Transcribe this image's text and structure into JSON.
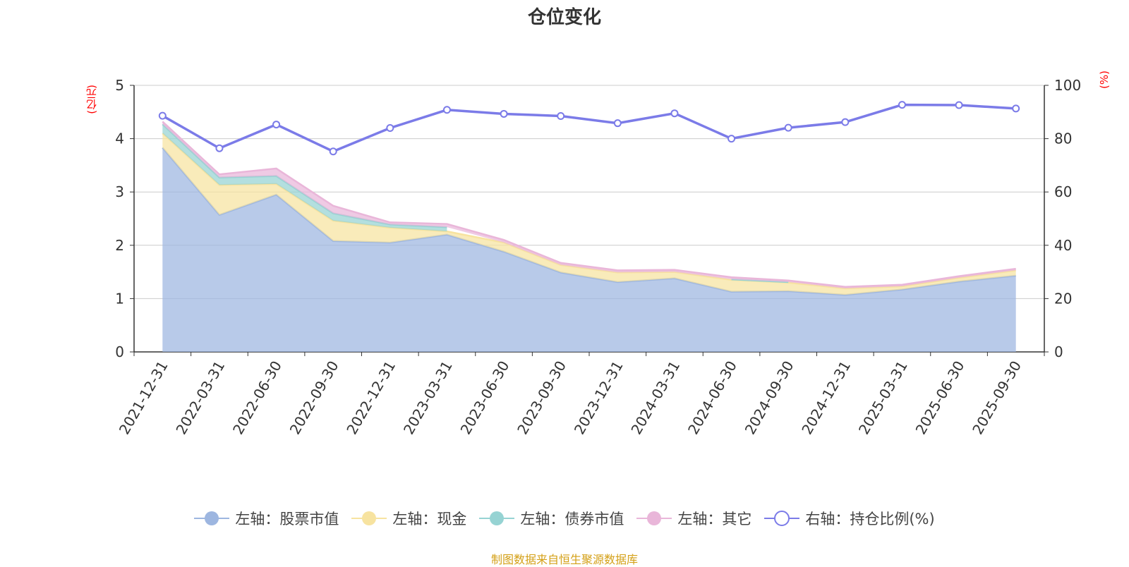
{
  "title": "仓位变化",
  "source": "制图数据来自恒生聚源数据库",
  "units": {
    "left": "(亿元)",
    "right": "(%)"
  },
  "chart_data": {
    "type": "area",
    "title": "仓位变化",
    "categories": [
      "2021-12-31",
      "2022-03-31",
      "2022-06-30",
      "2022-09-30",
      "2022-12-31",
      "2023-03-31",
      "2023-06-30",
      "2023-09-30",
      "2023-12-31",
      "2024-03-31",
      "2024-06-30",
      "2024-09-30",
      "2024-12-31",
      "2025-03-31",
      "2025-06-30",
      "2025-09-30"
    ],
    "y_left": {
      "min": 0,
      "max": 5,
      "ticks": [
        0,
        1,
        2,
        3,
        4,
        5
      ],
      "label": "(亿元)"
    },
    "y_right": {
      "min": 0,
      "max": 100,
      "ticks": [
        0,
        20,
        40,
        60,
        80,
        100
      ],
      "label": "(%)"
    },
    "series": [
      {
        "name": "左轴：股票市值",
        "axis": "left",
        "stack": true,
        "color": "#9db6e0",
        "values": [
          3.83,
          2.57,
          2.95,
          2.08,
          2.05,
          2.2,
          1.88,
          1.49,
          1.31,
          1.38,
          1.13,
          1.14,
          1.07,
          1.17,
          1.32,
          1.43
        ]
      },
      {
        "name": "左轴：现金",
        "axis": "left",
        "stack": true,
        "color": "#f7e3a0",
        "values": [
          0.27,
          0.56,
          0.2,
          0.38,
          0.28,
          0.06,
          0.17,
          0.14,
          0.18,
          0.12,
          0.22,
          0.16,
          0.12,
          0.06,
          0.07,
          0.1
        ]
      },
      {
        "name": "左轴：债券市值",
        "axis": "left",
        "stack": true,
        "color": "#96d3d3",
        "values": [
          0.17,
          0.14,
          0.15,
          0.14,
          0.06,
          0.08,
          null,
          null,
          null,
          null,
          0.01,
          0.01,
          null,
          null,
          null,
          null
        ]
      },
      {
        "name": "左轴：其它",
        "axis": "left",
        "stack": true,
        "color": "#e9b6d9",
        "values": [
          0.05,
          0.06,
          0.14,
          0.14,
          0.04,
          0.06,
          0.05,
          0.04,
          0.04,
          0.04,
          0.04,
          0.03,
          0.03,
          0.03,
          0.03,
          0.03
        ]
      },
      {
        "name": "右轴：持仓比例(%)",
        "axis": "right",
        "type": "line",
        "color": "#7b7be8",
        "values": [
          88.6,
          76.4,
          85.3,
          75.2,
          84.0,
          90.8,
          89.3,
          88.5,
          85.8,
          89.5,
          80.0,
          84.1,
          86.2,
          92.7,
          92.6,
          91.3
        ]
      }
    ]
  }
}
